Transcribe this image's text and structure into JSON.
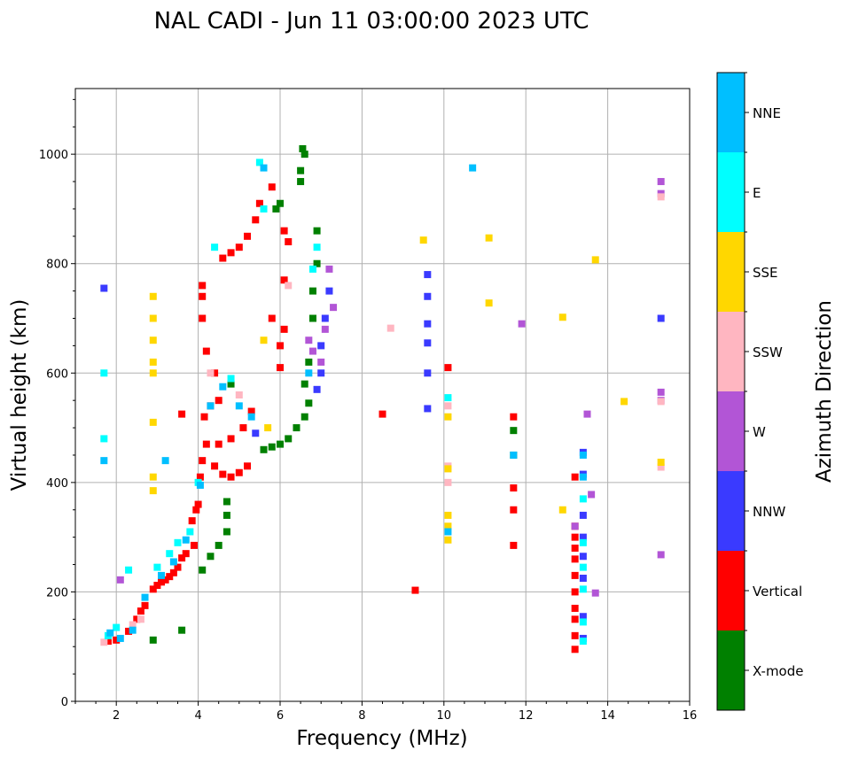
{
  "chart_data": {
    "type": "scatter",
    "title": "NAL CADI - Jun 11 03:00:00 2023 UTC",
    "xlabel": "Frequency (MHz)",
    "ylabel": "Virtual height (km)",
    "xlim": [
      1,
      16
    ],
    "ylim": [
      0,
      1120
    ],
    "xticks": [
      2,
      4,
      6,
      8,
      10,
      12,
      14,
      16
    ],
    "xtick_labels": [
      "2",
      "4",
      "6",
      "8",
      "10",
      "12",
      "14",
      "16"
    ],
    "yticks": [
      0,
      200,
      400,
      600,
      800,
      1000
    ],
    "ytick_labels": [
      "0",
      "200",
      "400",
      "600",
      "800",
      "1000"
    ],
    "grid": true,
    "colorbar": {
      "label": "Azimuth Direction",
      "categories": [
        "X-mode",
        "Vertical",
        "NNW",
        "W",
        "SSW",
        "SSE",
        "E",
        "NNE"
      ],
      "colors": [
        "#008000",
        "#ff0000",
        "#3a3aff",
        "#b255d6",
        "#ffb6c1",
        "#ffd700",
        "#00ffff",
        "#00bfff"
      ]
    },
    "series": [
      {
        "name": "Vertical",
        "color": "#ff0000",
        "points": [
          [
            1.8,
            110
          ],
          [
            2.0,
            112
          ],
          [
            2.3,
            128
          ],
          [
            2.5,
            150
          ],
          [
            2.6,
            165
          ],
          [
            2.7,
            175
          ],
          [
            2.9,
            205
          ],
          [
            3.0,
            212
          ],
          [
            3.1,
            218
          ],
          [
            3.2,
            222
          ],
          [
            3.3,
            228
          ],
          [
            3.4,
            235
          ],
          [
            3.5,
            245
          ],
          [
            3.6,
            262
          ],
          [
            3.7,
            270
          ],
          [
            3.9,
            285
          ],
          [
            3.85,
            330
          ],
          [
            3.95,
            350
          ],
          [
            4.0,
            360
          ],
          [
            4.05,
            410
          ],
          [
            4.1,
            440
          ],
          [
            4.2,
            470
          ],
          [
            4.15,
            520
          ],
          [
            4.3,
            540
          ],
          [
            4.5,
            550
          ],
          [
            4.4,
            600
          ],
          [
            4.2,
            640
          ],
          [
            4.1,
            700
          ],
          [
            4.1,
            740
          ],
          [
            4.1,
            760
          ],
          [
            4.4,
            430
          ],
          [
            4.6,
            415
          ],
          [
            4.8,
            410
          ],
          [
            5.0,
            418
          ],
          [
            5.2,
            430
          ],
          [
            4.5,
            470
          ],
          [
            4.8,
            480
          ],
          [
            5.1,
            500
          ],
          [
            5.3,
            530
          ],
          [
            4.6,
            810
          ],
          [
            4.8,
            820
          ],
          [
            5.0,
            830
          ],
          [
            5.2,
            850
          ],
          [
            5.4,
            880
          ],
          [
            5.5,
            910
          ],
          [
            5.8,
            940
          ],
          [
            6.1,
            860
          ],
          [
            6.2,
            840
          ],
          [
            6.0,
            650
          ],
          [
            6.0,
            610
          ],
          [
            6.1,
            680
          ],
          [
            6.1,
            770
          ],
          [
            5.8,
            700
          ],
          [
            3.6,
            525
          ],
          [
            8.5,
            525
          ],
          [
            9.3,
            203
          ],
          [
            10.1,
            610
          ],
          [
            11.7,
            520
          ],
          [
            11.7,
            285
          ],
          [
            11.7,
            390
          ],
          [
            11.7,
            350
          ],
          [
            13.2,
            410
          ],
          [
            13.2,
            320
          ],
          [
            13.2,
            300
          ],
          [
            13.2,
            280
          ],
          [
            13.2,
            260
          ],
          [
            13.2,
            230
          ],
          [
            13.2,
            200
          ],
          [
            13.2,
            170
          ],
          [
            13.2,
            150
          ],
          [
            13.2,
            120
          ],
          [
            13.2,
            95
          ]
        ]
      },
      {
        "name": "X-mode",
        "color": "#008000",
        "points": [
          [
            2.9,
            112
          ],
          [
            3.6,
            130
          ],
          [
            4.1,
            240
          ],
          [
            4.3,
            265
          ],
          [
            4.5,
            285
          ],
          [
            4.7,
            310
          ],
          [
            4.7,
            340
          ],
          [
            4.7,
            365
          ],
          [
            5.6,
            460
          ],
          [
            5.8,
            465
          ],
          [
            6.0,
            470
          ],
          [
            6.2,
            480
          ],
          [
            6.4,
            500
          ],
          [
            6.6,
            520
          ],
          [
            6.7,
            545
          ],
          [
            6.6,
            580
          ],
          [
            6.7,
            620
          ],
          [
            6.8,
            700
          ],
          [
            6.8,
            750
          ],
          [
            6.9,
            800
          ],
          [
            6.9,
            860
          ],
          [
            6.5,
            950
          ],
          [
            6.6,
            1000
          ],
          [
            6.55,
            1010
          ],
          [
            6.5,
            970
          ],
          [
            6.0,
            910
          ],
          [
            5.9,
            900
          ],
          [
            11.7,
            495
          ],
          [
            11.7,
            450
          ],
          [
            4.8,
            580
          ]
        ]
      },
      {
        "name": "NNW",
        "color": "#3a3aff",
        "points": [
          [
            1.7,
            755
          ],
          [
            7.2,
            750
          ],
          [
            7.1,
            700
          ],
          [
            7.0,
            650
          ],
          [
            7.0,
            600
          ],
          [
            6.9,
            570
          ],
          [
            9.6,
            780
          ],
          [
            9.6,
            740
          ],
          [
            9.6,
            690
          ],
          [
            9.6,
            655
          ],
          [
            9.6,
            600
          ],
          [
            9.6,
            535
          ],
          [
            13.4,
            455
          ],
          [
            13.4,
            415
          ],
          [
            13.4,
            340
          ],
          [
            13.4,
            300
          ],
          [
            13.4,
            265
          ],
          [
            13.4,
            225
          ],
          [
            13.4,
            155
          ],
          [
            13.4,
            115
          ],
          [
            15.3,
            700
          ],
          [
            5.4,
            490
          ]
        ]
      },
      {
        "name": "W",
        "color": "#b255d6",
        "points": [
          [
            2.1,
            222
          ],
          [
            6.7,
            660
          ],
          [
            6.8,
            640
          ],
          [
            7.0,
            620
          ],
          [
            7.1,
            680
          ],
          [
            7.3,
            720
          ],
          [
            7.2,
            790
          ],
          [
            11.9,
            690
          ],
          [
            13.5,
            525
          ],
          [
            13.6,
            378
          ],
          [
            13.7,
            198
          ],
          [
            15.3,
            950
          ],
          [
            15.3,
            928
          ],
          [
            15.3,
            565
          ],
          [
            15.3,
            550
          ],
          [
            15.3,
            268
          ],
          [
            13.2,
            320
          ]
        ]
      },
      {
        "name": "SSW",
        "color": "#ffb6c1",
        "points": [
          [
            1.7,
            108
          ],
          [
            2.4,
            140
          ],
          [
            2.6,
            150
          ],
          [
            8.7,
            682
          ],
          [
            10.1,
            540
          ],
          [
            10.1,
            430
          ],
          [
            10.1,
            400
          ],
          [
            15.3,
            922
          ],
          [
            15.3,
            548
          ],
          [
            15.3,
            428
          ],
          [
            4.3,
            600
          ],
          [
            5.0,
            560
          ],
          [
            6.2,
            760
          ]
        ]
      },
      {
        "name": "SSE",
        "color": "#ffd700",
        "points": [
          [
            2.9,
            740
          ],
          [
            2.9,
            700
          ],
          [
            2.9,
            660
          ],
          [
            2.9,
            620
          ],
          [
            2.9,
            600
          ],
          [
            2.9,
            510
          ],
          [
            2.9,
            410
          ],
          [
            2.9,
            385
          ],
          [
            10.1,
            520
          ],
          [
            10.1,
            425
          ],
          [
            10.1,
            340
          ],
          [
            10.1,
            320
          ],
          [
            10.1,
            295
          ],
          [
            9.5,
            843
          ],
          [
            11.1,
            847
          ],
          [
            11.1,
            728
          ],
          [
            12.9,
            702
          ],
          [
            12.9,
            350
          ],
          [
            13.7,
            807
          ],
          [
            14.4,
            548
          ],
          [
            15.3,
            437
          ],
          [
            5.7,
            500
          ],
          [
            5.6,
            660
          ]
        ]
      },
      {
        "name": "E",
        "color": "#00ffff",
        "points": [
          [
            1.8,
            120
          ],
          [
            2.0,
            135
          ],
          [
            2.3,
            240
          ],
          [
            3.0,
            245
          ],
          [
            3.3,
            270
          ],
          [
            3.5,
            290
          ],
          [
            3.8,
            310
          ],
          [
            4.0,
            400
          ],
          [
            4.4,
            830
          ],
          [
            4.8,
            590
          ],
          [
            5.5,
            985
          ],
          [
            5.6,
            900
          ],
          [
            6.8,
            790
          ],
          [
            6.9,
            830
          ],
          [
            10.1,
            555
          ],
          [
            13.4,
            370
          ],
          [
            13.4,
            290
          ],
          [
            13.4,
            245
          ],
          [
            13.4,
            205
          ],
          [
            13.4,
            145
          ],
          [
            13.4,
            110
          ],
          [
            1.7,
            480
          ],
          [
            1.7,
            600
          ]
        ]
      },
      {
        "name": "NNE",
        "color": "#00bfff",
        "points": [
          [
            1.85,
            125
          ],
          [
            2.1,
            115
          ],
          [
            2.4,
            130
          ],
          [
            2.7,
            190
          ],
          [
            3.1,
            230
          ],
          [
            3.4,
            255
          ],
          [
            3.7,
            295
          ],
          [
            4.05,
            395
          ],
          [
            4.6,
            575
          ],
          [
            5.0,
            540
          ],
          [
            5.3,
            520
          ],
          [
            5.6,
            975
          ],
          [
            6.7,
            600
          ],
          [
            10.7,
            975
          ],
          [
            10.1,
            310
          ],
          [
            11.7,
            450
          ],
          [
            13.4,
            450
          ],
          [
            13.4,
            410
          ],
          [
            1.7,
            440
          ],
          [
            3.2,
            440
          ],
          [
            4.3,
            540
          ]
        ]
      }
    ]
  }
}
